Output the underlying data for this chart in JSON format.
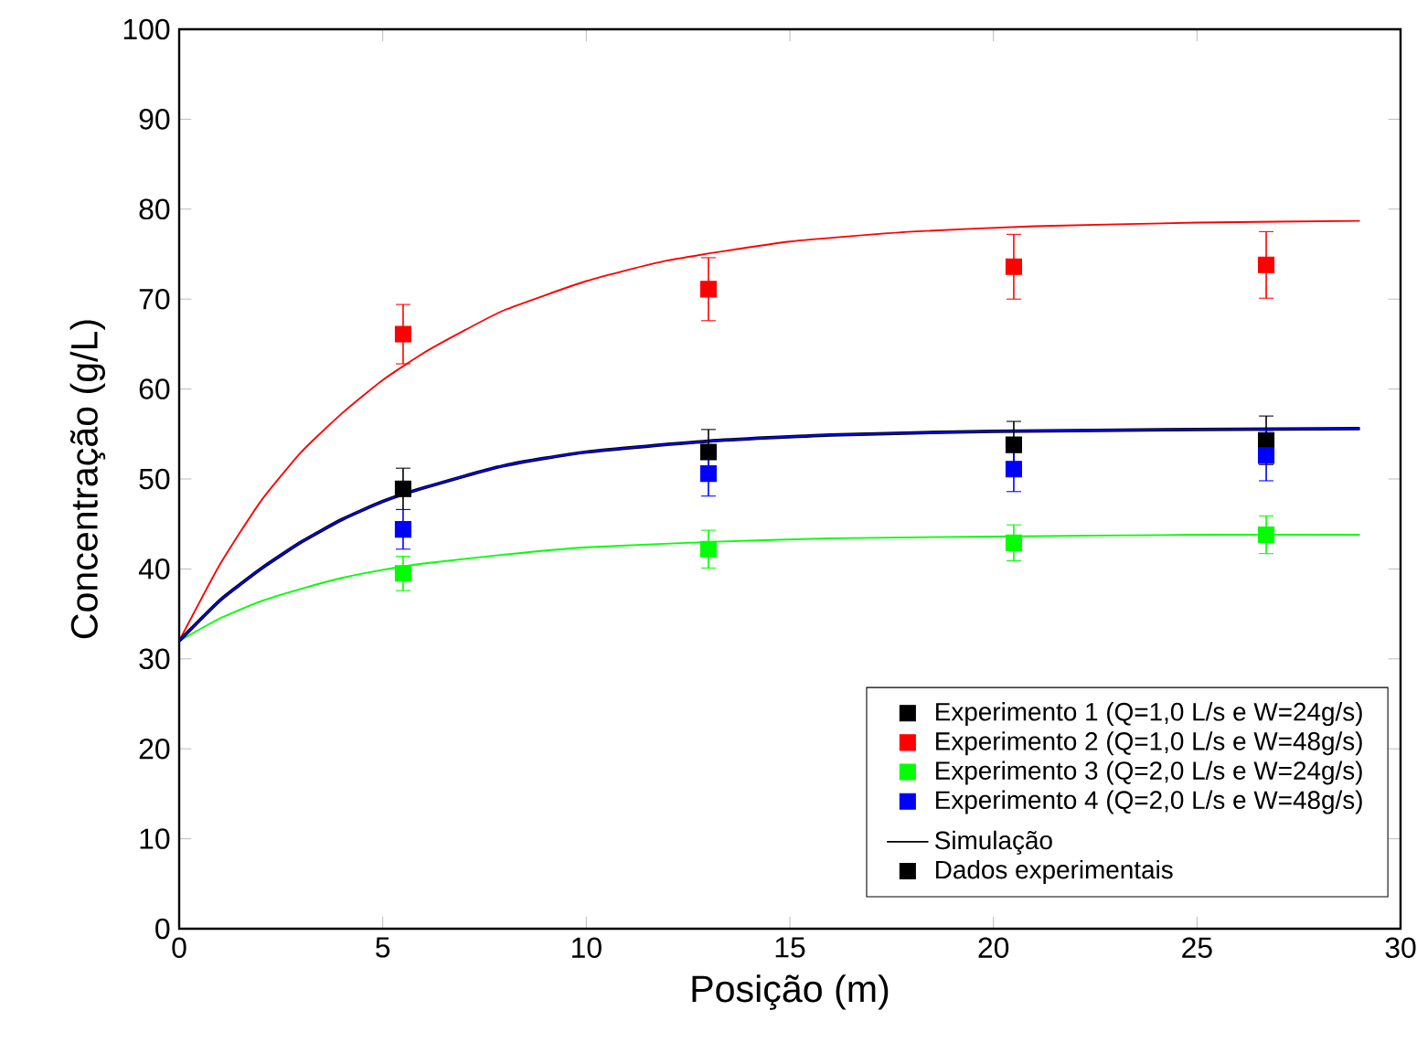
{
  "chart_data": {
    "type": "scatter",
    "xlabel": "Posição (m)",
    "ylabel": "Concentração (g/L)",
    "xlim": [
      0,
      30
    ],
    "ylim": [
      0,
      100
    ],
    "xticks": [
      0,
      5,
      10,
      15,
      20,
      25,
      30
    ],
    "yticks": [
      0,
      10,
      20,
      30,
      40,
      50,
      60,
      70,
      80,
      90,
      100
    ],
    "x": [
      5.5,
      13,
      20.5,
      26.7
    ],
    "marker": "square",
    "legend": "bottom right",
    "grid": false,
    "annotations": [
      "Dados experimentais"
    ],
    "series": [
      {
        "type": "line",
        "marker": "none",
        "color": "#ff0000",
        "x": [
          0,
          1,
          2,
          3,
          4,
          5,
          6,
          7,
          8,
          10,
          12,
          15,
          18,
          21,
          25,
          29
        ],
        "values": [
          32,
          40.5,
          47.5,
          53,
          57.3,
          61,
          64,
          66.5,
          68.8,
          72,
          74.3,
          76.4,
          77.5,
          78.1,
          78.5,
          78.7
        ]
      },
      {
        "type": "line",
        "marker": "none",
        "color": "#00ff00",
        "x": [
          0,
          1,
          2,
          3,
          4,
          5,
          6,
          8,
          10,
          13,
          16,
          20,
          25,
          29
        ],
        "values": [
          32,
          34.5,
          36.4,
          37.8,
          39,
          39.9,
          40.6,
          41.6,
          42.4,
          43,
          43.4,
          43.6,
          43.8,
          43.8
        ]
      },
      {
        "type": "line",
        "marker": "none",
        "name": "Simulação",
        "color": "#000000",
        "x": [
          0,
          1,
          2,
          3,
          4,
          5,
          6,
          8,
          10,
          13,
          16,
          20,
          25,
          29
        ],
        "values": [
          32,
          36.5,
          40,
          43,
          45.5,
          47.5,
          49,
          51.5,
          53,
          54.2,
          54.9,
          55.3,
          55.5,
          55.6
        ]
      },
      {
        "type": "line",
        "marker": "none",
        "color": "#0000ff",
        "x": [
          0,
          1,
          2,
          3,
          4,
          5,
          6,
          8,
          10,
          13,
          16,
          20,
          25,
          29
        ],
        "values": [
          32,
          36.5,
          40,
          43,
          45.5,
          47.5,
          49,
          51.5,
          53,
          54.2,
          54.9,
          55.3,
          55.5,
          55.6
        ]
      },
      {
        "name": "Experimento 1 (Q=1,0 L/s e W=24g/s)",
        "color": "#000000",
        "values": [
          48.9,
          53.0,
          53.8,
          54.3
        ],
        "errors": [
          2.3,
          2.5,
          2.6,
          2.7
        ]
      },
      {
        "name": "Experimento 2 (Q=1,0 L/s e W=48g/s)",
        "color": "#ff0000",
        "values": [
          66.1,
          71.1,
          73.6,
          73.8
        ],
        "errors": [
          3.3,
          3.5,
          3.6,
          3.7
        ]
      },
      {
        "name": "Experimento 3 (Q=2,0 L/s e W=24g/s)",
        "color": "#00ff00",
        "values": [
          39.5,
          42.2,
          42.9,
          43.8
        ],
        "errors": [
          1.9,
          2.1,
          2.0,
          2.1
        ]
      },
      {
        "name": "Experimento 4 (Q=2,0 L/s e W=48g/s)",
        "color": "#0000ff",
        "values": [
          44.4,
          50.6,
          51.1,
          52.6
        ],
        "errors": [
          2.2,
          2.5,
          2.5,
          2.8
        ]
      }
    ]
  }
}
